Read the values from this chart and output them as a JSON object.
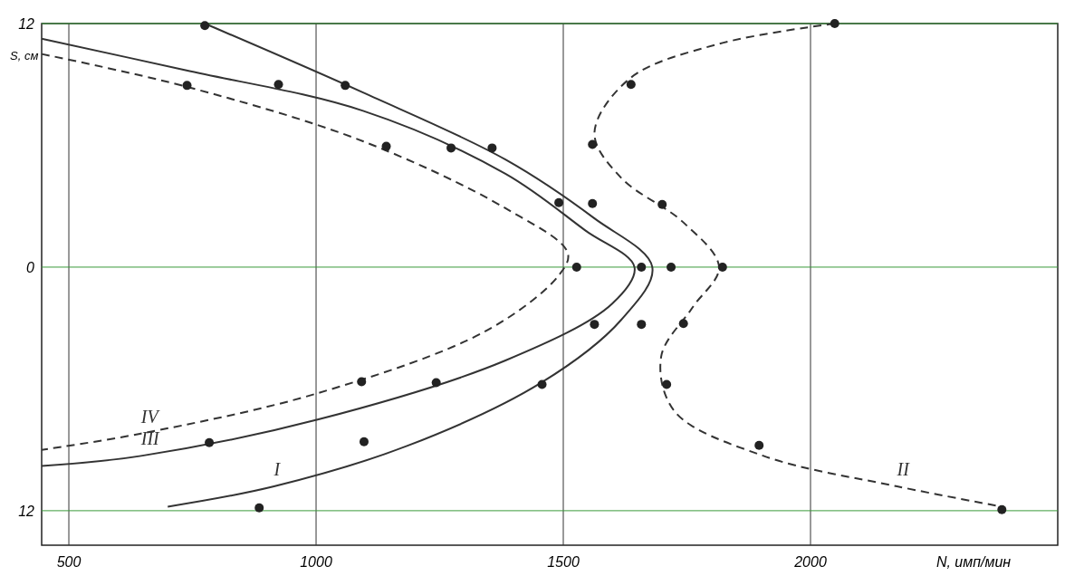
{
  "chart_data": {
    "type": "line",
    "xlabel": "N, имп/мин",
    "ylabel": "S, см",
    "xlim": [
      445,
      2500
    ],
    "xticks": [
      500,
      1000,
      1500,
      2000
    ],
    "ylim": [
      -13.7,
      12
    ],
    "yticks": [
      {
        "value": 12,
        "label": "12"
      },
      0,
      {
        "value": -12,
        "label": "12"
      }
    ],
    "grid": true,
    "marker": "none",
    "series": [
      {
        "name": "I",
        "color": "#333333",
        "line_style": "solid",
        "x": [
          775,
          1095,
          1383,
          1563,
          1680,
          1617,
          1455,
          1185,
          915,
          700
        ],
        "values": [
          12,
          8.6,
          5.3,
          2.4,
          0,
          -2.6,
          -5.7,
          -8.8,
          -10.8,
          -11.8
        ]
      },
      {
        "name": "II",
        "color": "#333333",
        "line_style": "dashed",
        "x": [
          2049,
          1815,
          1635,
          1563,
          1617,
          1743,
          1815,
          1761,
          1698,
          1725,
          1905,
          2175,
          2387
        ],
        "values": [
          12,
          11,
          9.3,
          6.6,
          4.4,
          2.2,
          0,
          -2,
          -4.4,
          -7.1,
          -9.3,
          -10.8,
          -11.8
        ]
      },
      {
        "name": "III",
        "color": "#333333",
        "line_style": "solid",
        "x": [
          445,
          736,
          1095,
          1383,
          1545,
          1644,
          1599,
          1383,
          1005,
          646,
          445
        ],
        "values": [
          11.25,
          9.7,
          7.7,
          4.6,
          1.8,
          0,
          -1.8,
          -4.6,
          -7.5,
          -9.3,
          -9.8
        ]
      },
      {
        "name": "IV",
        "color": "#333333",
        "line_style": "dashed",
        "x": [
          445,
          736,
          1095,
          1383,
          1509,
          1491,
          1347,
          1005,
          646,
          445
        ],
        "values": [
          10.5,
          8.9,
          6.2,
          2.9,
          0.7,
          -0.4,
          -3.1,
          -6.2,
          -8.2,
          -9
        ]
      },
      {
        "type": "scatter",
        "marker": "circle",
        "color": "#222222",
        "x": [
          775,
          739,
          924,
          1059,
          1142,
          1273,
          1356,
          1491,
          1559,
          1700,
          1559,
          1637,
          2049,
          1527,
          1658,
          1718,
          1822,
          1563,
          1658,
          1743,
          1092,
          1243,
          1457,
          1709,
          1097,
          784,
          1896,
          885,
          2387
        ],
        "values": [
          11.9,
          8.95,
          9,
          8.95,
          5.95,
          5.87,
          5.87,
          3.18,
          3.13,
          3.09,
          6.04,
          9,
          12,
          0,
          0,
          0,
          0,
          -2.82,
          -2.82,
          -2.78,
          -5.65,
          -5.69,
          -5.78,
          -5.78,
          -8.6,
          -8.65,
          -8.78,
          -11.86,
          -11.95
        ]
      }
    ]
  }
}
